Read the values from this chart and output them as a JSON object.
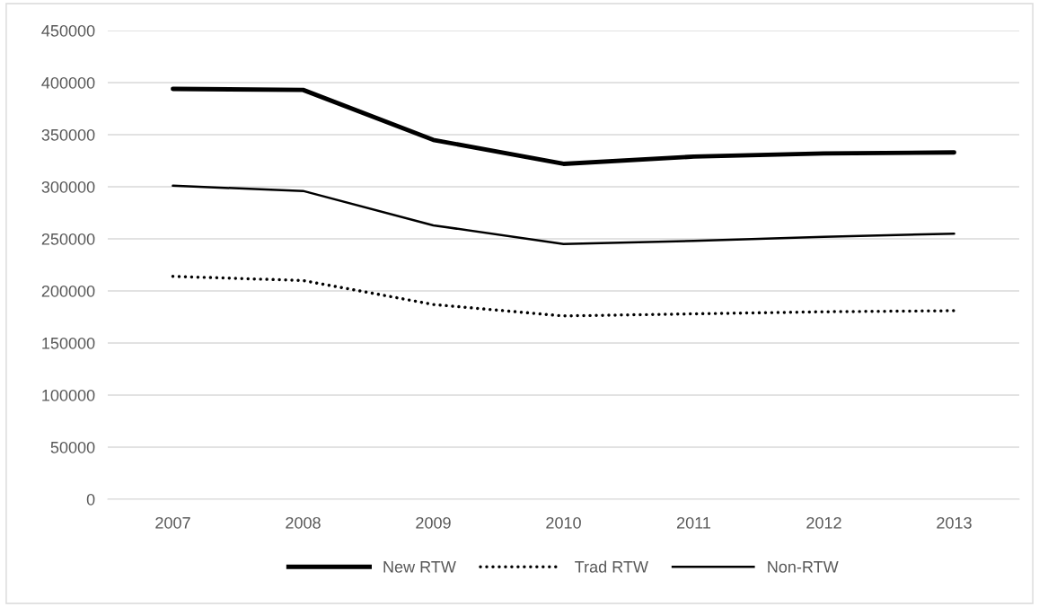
{
  "chart_data": {
    "type": "line",
    "categories": [
      "2007",
      "2008",
      "2009",
      "2010",
      "2011",
      "2012",
      "2013"
    ],
    "series": [
      {
        "name": "New RTW",
        "color": "#000000",
        "line_style": "solid",
        "values": [
          394000,
          393000,
          345000,
          322000,
          329000,
          332000,
          333000
        ]
      },
      {
        "name": "Trad RTW",
        "color": "#000000",
        "line_style": "dotted",
        "values": [
          214000,
          210000,
          187000,
          176000,
          178000,
          180000,
          181000
        ]
      },
      {
        "name": "Non-RTW",
        "color": "#000000",
        "line_style": "solid",
        "values": [
          301000,
          296000,
          263000,
          245000,
          248000,
          252000,
          255000
        ]
      }
    ],
    "ylim": [
      0,
      450000
    ],
    "yticks": [
      0,
      50000,
      100000,
      150000,
      200000,
      250000,
      300000,
      350000,
      400000,
      450000
    ],
    "grid": "y",
    "legend": "bottom",
    "marker": "none"
  }
}
